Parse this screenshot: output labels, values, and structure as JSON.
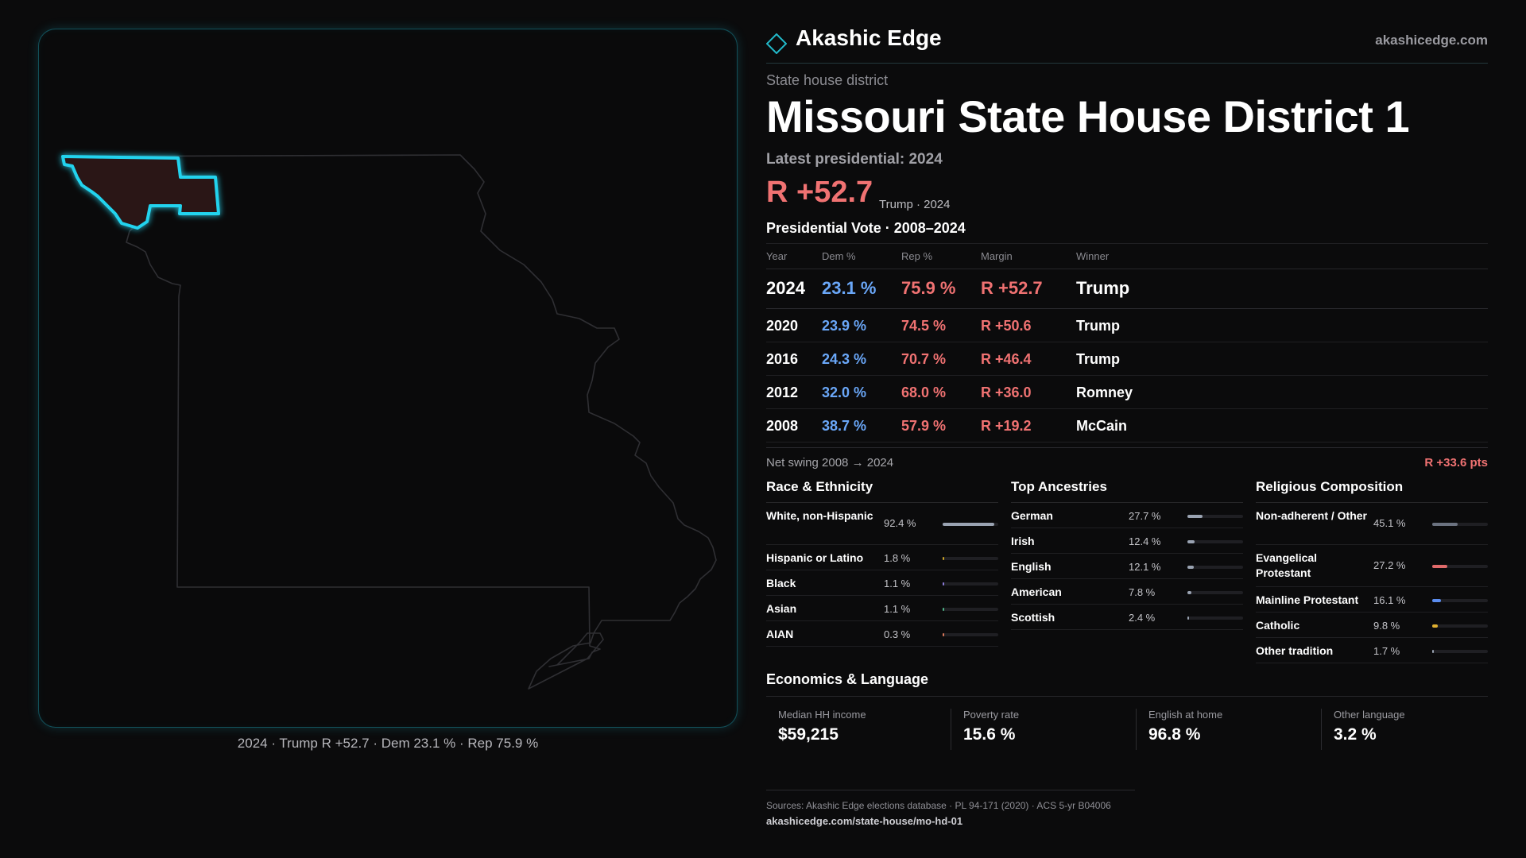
{
  "brand": {
    "name": "Akashic Edge",
    "url": "akashicedge.com"
  },
  "kicker": "State house district",
  "title": "Missouri State House District 1",
  "latest_label": "Latest presidential: 2024",
  "headline_margin": "R +52.7",
  "headline_sub": "Trump · 2024",
  "map_caption": "2024 · Trump R +52.7 · Dem 23.1 % · Rep 75.9 %",
  "presidential": {
    "title": "Presidential Vote · 2008–2024",
    "headers": {
      "year": "Year",
      "dem": "Dem %",
      "rep": "Rep %",
      "margin": "Margin",
      "winner": "Winner"
    },
    "rows": [
      {
        "year": "2024",
        "dem": "23.1 %",
        "rep": "75.9 %",
        "margin": "R +52.7",
        "winner": "Trump"
      },
      {
        "year": "2020",
        "dem": "23.9 %",
        "rep": "74.5 %",
        "margin": "R +50.6",
        "winner": "Trump"
      },
      {
        "year": "2016",
        "dem": "24.3 %",
        "rep": "70.7 %",
        "margin": "R +46.4",
        "winner": "Trump"
      },
      {
        "year": "2012",
        "dem": "32.0 %",
        "rep": "68.0 %",
        "margin": "R +36.0",
        "winner": "Romney"
      },
      {
        "year": "2008",
        "dem": "38.7 %",
        "rep": "57.9 %",
        "margin": "R +19.2",
        "winner": "McCain"
      }
    ]
  },
  "swing": {
    "label": "Net swing 2008 → 2024",
    "value": "R +33.6 pts"
  },
  "race": {
    "title": "Race & Ethnicity",
    "items": [
      {
        "label": "White, non-Hispanic",
        "value": "92.4 %",
        "share": 0.924,
        "color": "#9aa3b2"
      },
      {
        "label": "Hispanic or Latino",
        "value": "1.8 %",
        "share": 0.018,
        "color": "#c9a227"
      },
      {
        "label": "Black",
        "value": "1.1 %",
        "share": 0.011,
        "color": "#8b7bd8"
      },
      {
        "label": "Asian",
        "value": "1.1 %",
        "share": 0.011,
        "color": "#4fb286"
      },
      {
        "label": "AIAN",
        "value": "0.3 %",
        "share": 0.003,
        "color": "#d9785a"
      }
    ]
  },
  "ancestry": {
    "title": "Top Ancestries",
    "items": [
      {
        "label": "German",
        "value": "27.7 %",
        "share": 0.277,
        "color": "#9aa3b2"
      },
      {
        "label": "Irish",
        "value": "12.4 %",
        "share": 0.124,
        "color": "#9aa3b2"
      },
      {
        "label": "English",
        "value": "12.1 %",
        "share": 0.121,
        "color": "#9aa3b2"
      },
      {
        "label": "American",
        "value": "7.8 %",
        "share": 0.078,
        "color": "#9aa3b2"
      },
      {
        "label": "Scottish",
        "value": "2.4 %",
        "share": 0.024,
        "color": "#9aa3b2"
      }
    ]
  },
  "religion": {
    "title": "Religious Composition",
    "items": [
      {
        "label": "Non-adherent / Other",
        "value": "45.1 %",
        "share": 0.451,
        "color": "#6b7280"
      },
      {
        "label": "Evangelical Protestant",
        "value": "27.2 %",
        "share": 0.272,
        "color": "#e06a6a"
      },
      {
        "label": "Mainline Protestant",
        "value": "16.1 %",
        "share": 0.161,
        "color": "#5b8def"
      },
      {
        "label": "Catholic",
        "value": "9.8 %",
        "share": 0.098,
        "color": "#e0b030"
      },
      {
        "label": "Other tradition",
        "value": "1.7 %",
        "share": 0.017,
        "color": "#9aa3b2"
      }
    ]
  },
  "economics": {
    "title": "Economics & Language",
    "items": [
      {
        "label": "Median HH income",
        "value": "$59,215"
      },
      {
        "label": "Poverty rate",
        "value": "15.6 %"
      },
      {
        "label": "English at home",
        "value": "96.8 %"
      },
      {
        "label": "Other language",
        "value": "3.2 %"
      }
    ]
  },
  "footer": {
    "sources": "Sources: Akashic Edge elections database · PL 94-171 (2020) · ACS 5-yr B04006",
    "url": "akashicedge.com/state-house/mo-hd-01"
  },
  "colors": {
    "highlight": "#22d3ee",
    "republican": "#f07272",
    "democrat": "#6aa7f8"
  }
}
